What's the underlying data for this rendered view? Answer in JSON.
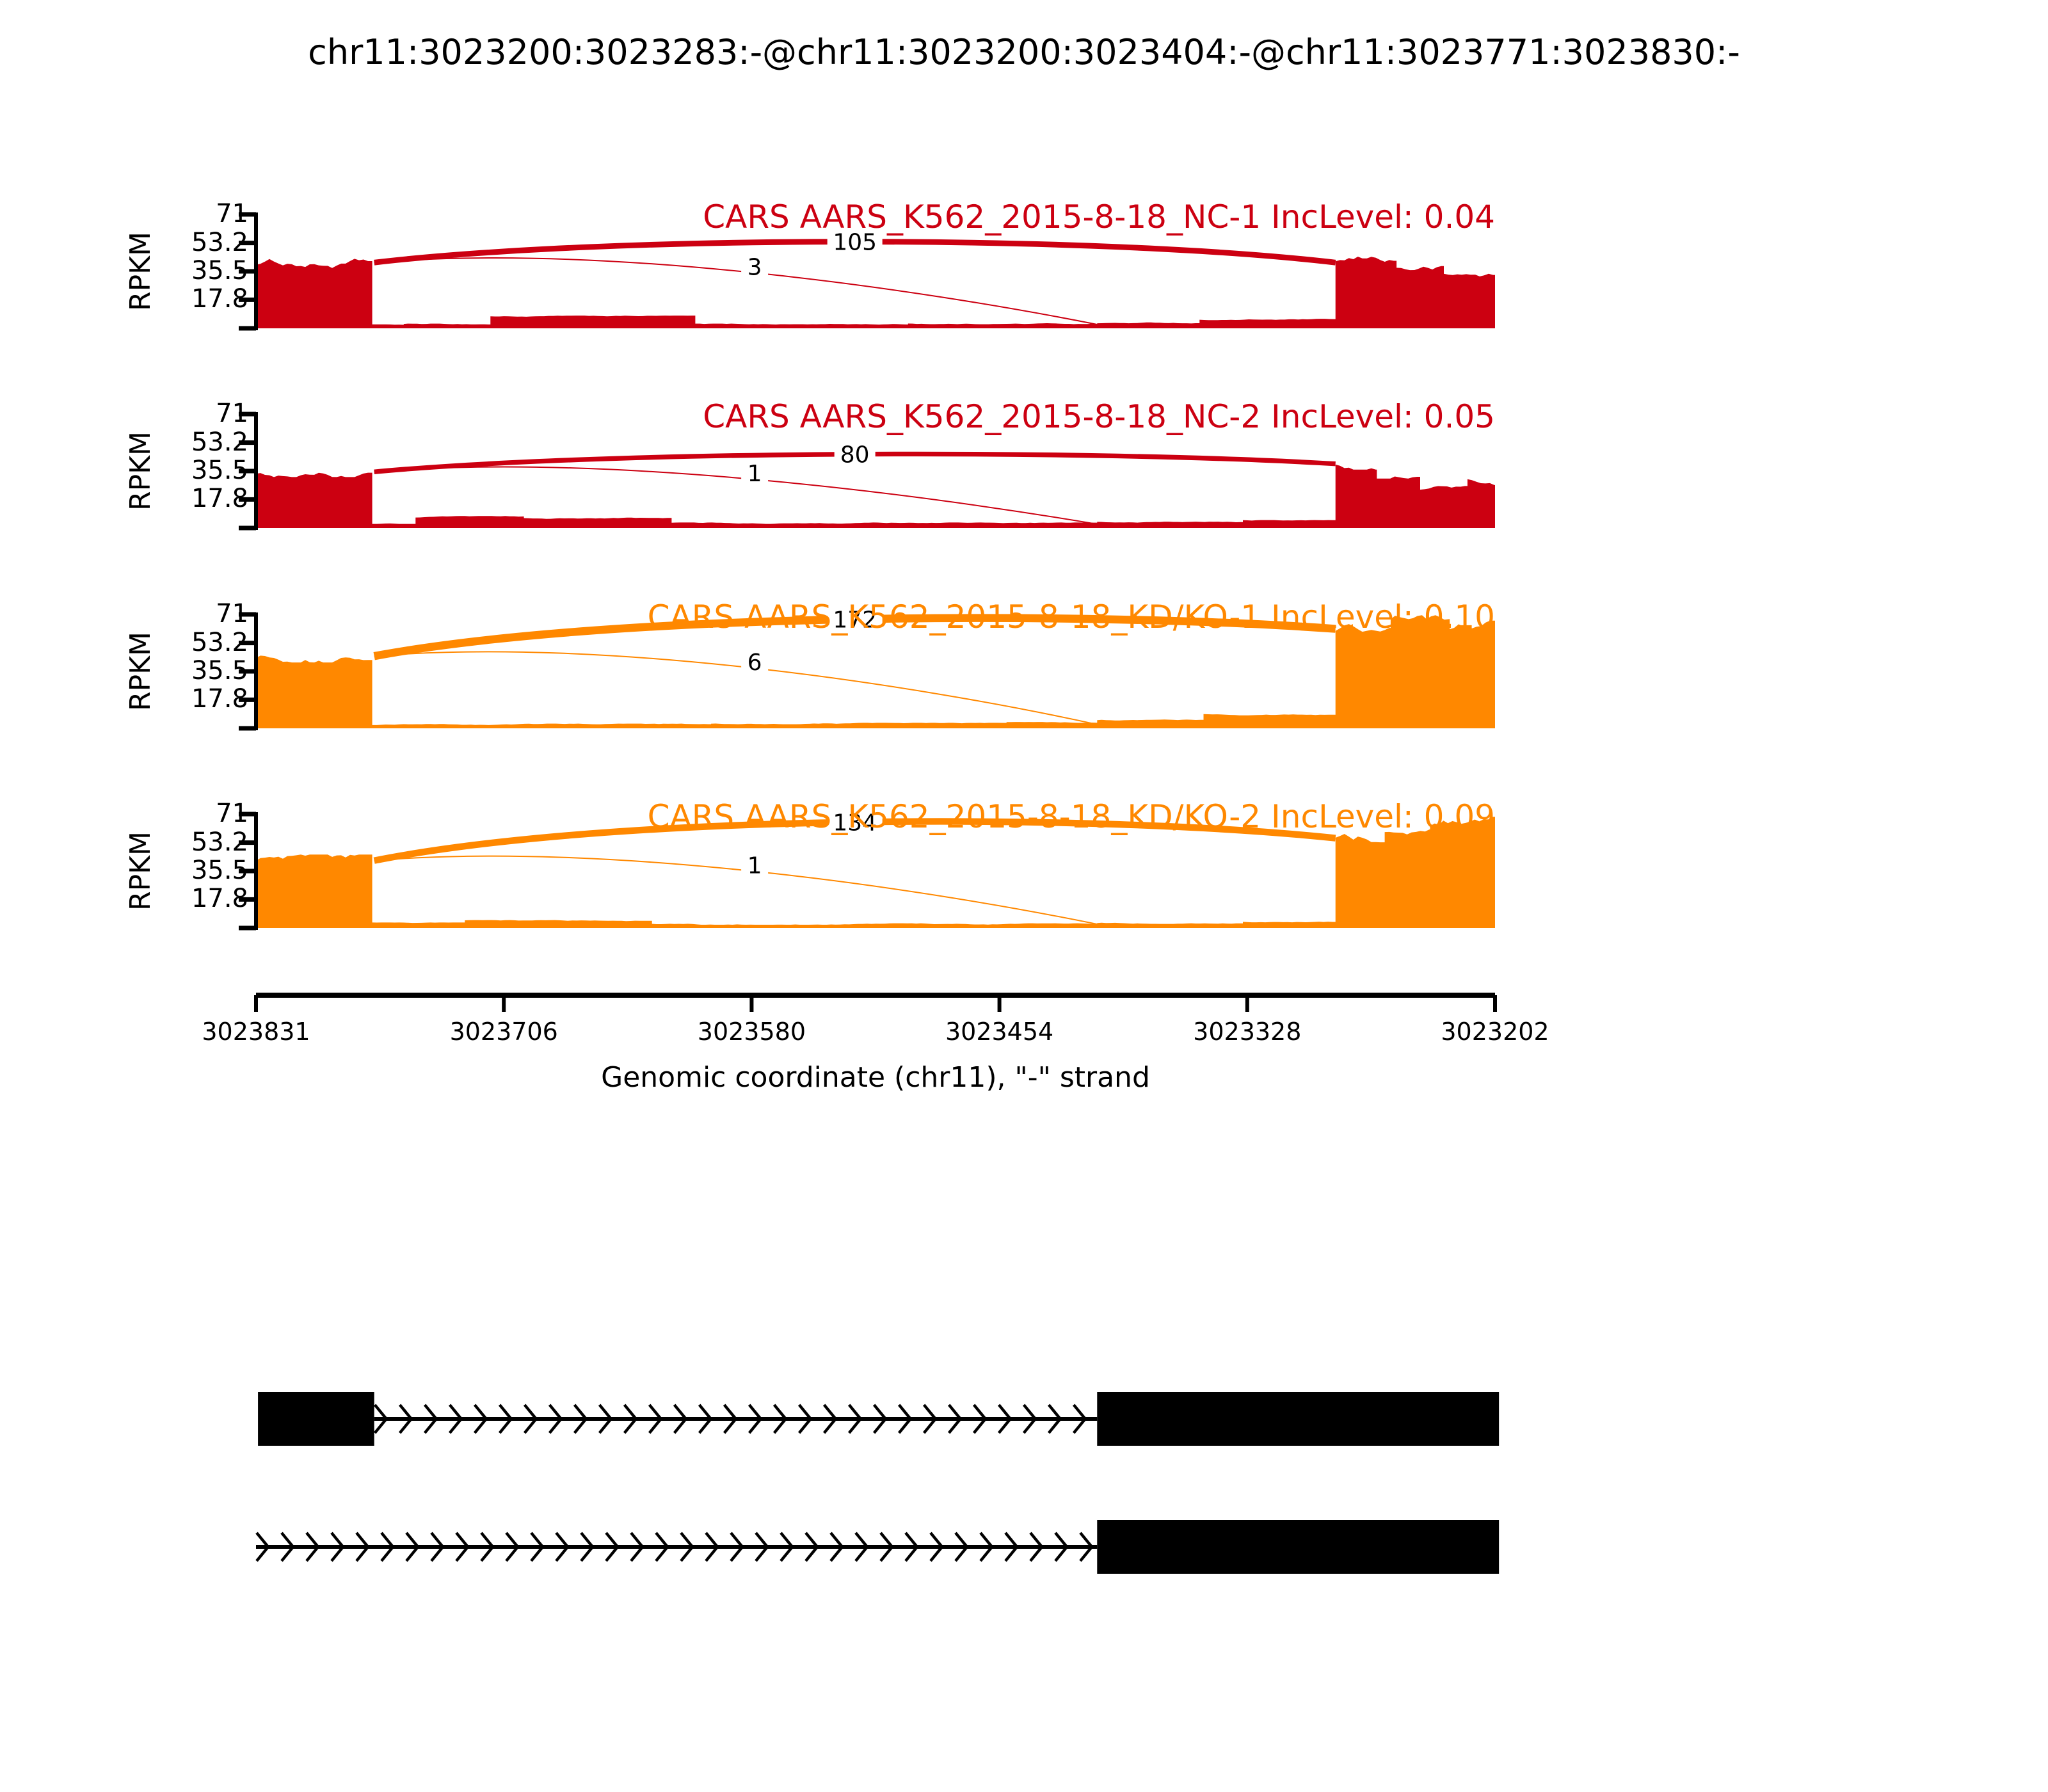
{
  "title": "chr11:3023200:3023283:-@chr11:3023200:3023404:-@chr11:3023771:3023830:-",
  "colors": {
    "red": "#CC0011",
    "orange": "#FF8800",
    "black": "#000000",
    "background": "#ffffff"
  },
  "figure": {
    "y_axis": {
      "label": "RPKM",
      "tick_labels": [
        "71",
        "53.2",
        "35.5",
        "17.8"
      ],
      "tick_values": [
        71,
        53.2,
        35.5,
        17.8
      ],
      "max_rpkm": 71
    },
    "x_axis": {
      "label": "Genomic coordinate (chr11), \"-\" strand",
      "tick_labels": [
        "3023831",
        "3023706",
        "3023580",
        "3023454",
        "3023328",
        "3023202"
      ],
      "start_bp": 3023831,
      "end_bp": 3023202
    }
  },
  "chart_data": {
    "type": "area",
    "subtype": "sashimi-plot",
    "x_unit": "genomic coordinate, chr11 minus strand (left = 3023831, right = 3023202)",
    "y_unit": "RPKM",
    "ylim": [
      0,
      71
    ],
    "tracks": [
      {
        "label": "CARS AARS_K562_2015-8-18_NC-1 IncLevel: 0.04",
        "inc_level": "0.04",
        "color": "#CC0011",
        "coverage_rpkm": [
          [
            3023831,
            3023772,
            41
          ],
          [
            3023772,
            3023756,
            2
          ],
          [
            3023756,
            3023712,
            2.5
          ],
          [
            3023712,
            3023608,
            7.5
          ],
          [
            3023608,
            3023500,
            2.5
          ],
          [
            3023500,
            3023404,
            3
          ],
          [
            3023404,
            3023352,
            3.5
          ],
          [
            3023352,
            3023283,
            5.5
          ],
          [
            3023283,
            3023252,
            41
          ],
          [
            3023252,
            3023228,
            36
          ],
          [
            3023228,
            3023202,
            31
          ]
        ],
        "junctions": [
          {
            "from_bp": 3023771,
            "to_bp": 3023283,
            "reads": 105,
            "type": "skipping",
            "apex_rpkm": 54
          },
          {
            "from_bp": 3023771,
            "to_bp": 3023404,
            "reads": 3,
            "type": "inclusion"
          }
        ]
      },
      {
        "label": "CARS AARS_K562_2015-8-18_NC-2 IncLevel: 0.05",
        "inc_level": "0.05",
        "color": "#CC0011",
        "coverage_rpkm": [
          [
            3023831,
            3023772,
            35
          ],
          [
            3023772,
            3023750,
            3
          ],
          [
            3023750,
            3023695,
            7
          ],
          [
            3023695,
            3023620,
            6
          ],
          [
            3023620,
            3023404,
            3
          ],
          [
            3023404,
            3023330,
            3.5
          ],
          [
            3023330,
            3023283,
            4.5
          ],
          [
            3023283,
            3023262,
            40
          ],
          [
            3023262,
            3023240,
            34
          ],
          [
            3023240,
            3023216,
            25
          ],
          [
            3023216,
            3023202,
            29
          ]
        ],
        "junctions": [
          {
            "from_bp": 3023771,
            "to_bp": 3023283,
            "reads": 80,
            "type": "skipping",
            "apex_rpkm": 46
          },
          {
            "from_bp": 3023771,
            "to_bp": 3023404,
            "reads": 1,
            "type": "inclusion"
          }
        ]
      },
      {
        "label": "CARS AARS_K562_2015-8-18_KD/KO-1 IncLevel: 0.10",
        "inc_level": "0.10",
        "color": "#FF8800",
        "coverage_rpkm": [
          [
            3023831,
            3023772,
            45
          ],
          [
            3023772,
            3023600,
            2.5
          ],
          [
            3023600,
            3023450,
            3
          ],
          [
            3023450,
            3023404,
            3.5
          ],
          [
            3023404,
            3023350,
            5
          ],
          [
            3023350,
            3023283,
            8.5
          ],
          [
            3023283,
            3023255,
            62
          ],
          [
            3023255,
            3023225,
            68
          ],
          [
            3023225,
            3023202,
            62
          ]
        ],
        "junctions": [
          {
            "from_bp": 3023771,
            "to_bp": 3023283,
            "reads": 172,
            "type": "skipping",
            "apex_rpkm": 68
          },
          {
            "from_bp": 3023771,
            "to_bp": 3023404,
            "reads": 6,
            "type": "inclusion"
          }
        ]
      },
      {
        "label": "CARS AARS_K562_2015-8-18_KD/KO-2 IncLevel: 0.09",
        "inc_level": "0.09",
        "color": "#FF8800",
        "coverage_rpkm": [
          [
            3023831,
            3023772,
            42
          ],
          [
            3023772,
            3023725,
            3
          ],
          [
            3023725,
            3023630,
            4.5
          ],
          [
            3023630,
            3023404,
            2.5
          ],
          [
            3023404,
            3023330,
            3
          ],
          [
            3023330,
            3023283,
            4
          ],
          [
            3023283,
            3023258,
            56
          ],
          [
            3023258,
            3023235,
            62
          ],
          [
            3023235,
            3023202,
            64
          ]
        ],
        "junctions": [
          {
            "from_bp": 3023771,
            "to_bp": 3023283,
            "reads": 134,
            "type": "skipping",
            "apex_rpkm": 66
          },
          {
            "from_bp": 3023771,
            "to_bp": 3023404,
            "reads": 1,
            "type": "inclusion"
          }
        ]
      }
    ],
    "gene_models": [
      {
        "exons_bp": [
          [
            3023830,
            3023771
          ],
          [
            3023404,
            3023200
          ]
        ],
        "intron_bp": [
          3023771,
          3023404
        ],
        "arrow_direction": "right"
      },
      {
        "exons_bp": [
          [
            3023404,
            3023200
          ]
        ],
        "intron_bp": [
          3023831,
          3023404
        ],
        "arrow_direction": "right"
      }
    ]
  }
}
